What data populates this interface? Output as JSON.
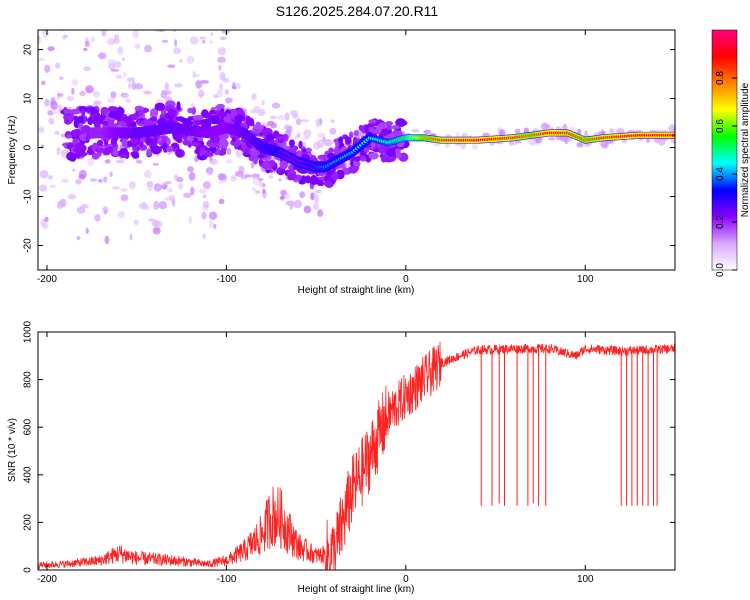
{
  "figure_title": "S126.2025.284.07.20.R11",
  "chart_data": [
    {
      "type": "heatmap",
      "title": "S126.2025.284.07.20.R11",
      "xlabel": "Height of straight line (km)",
      "ylabel": "Frequency (Hz)",
      "xlim": [
        -205,
        150
      ],
      "ylim": [
        -25,
        24
      ],
      "x_ticks": [
        -200,
        -100,
        0,
        100
      ],
      "y_ticks": [
        -20,
        -10,
        0,
        10,
        20
      ],
      "colorbar": {
        "label": "Normalized spectral amplitude",
        "range": [
          0,
          1
        ],
        "ticks": [
          "0.0",
          "0.2",
          "0.4",
          "0.6",
          "0.8"
        ],
        "tick_values": [
          0,
          0.2,
          0.4,
          0.6,
          0.8
        ],
        "colors": [
          "#ffffff",
          "#d9a6ff",
          "#8a00ff",
          "#0000ff",
          "#00ffff",
          "#00ff00",
          "#ffff00",
          "#ff8000",
          "#ff0000",
          "#ff0080"
        ]
      },
      "ridge": {
        "x": [
          -170,
          -150,
          -130,
          -110,
          -100,
          -90,
          -80,
          -70,
          -60,
          -50,
          -45,
          -40,
          -30,
          -20,
          -10,
          0,
          10,
          20,
          40,
          60,
          70,
          80,
          90,
          100,
          110,
          130,
          150
        ],
        "freq": [
          3,
          3,
          4,
          3,
          4,
          3,
          0,
          -1,
          -3,
          -4,
          -4,
          -3,
          -1,
          2,
          1,
          2,
          2,
          1.5,
          1.5,
          2,
          2.5,
          3,
          3,
          1.5,
          2,
          2.5,
          2.5
        ],
        "amp": [
          0.2,
          0.25,
          0.25,
          0.22,
          0.22,
          0.25,
          0.28,
          0.3,
          0.3,
          0.35,
          0.4,
          0.4,
          0.42,
          0.45,
          0.5,
          0.55,
          0.75,
          0.85,
          0.9,
          0.85,
          0.8,
          0.9,
          0.85,
          0.8,
          0.85,
          0.9,
          0.9
        ]
      }
    },
    {
      "type": "line",
      "xlabel": "Height of straight line (km)",
      "ylabel": "SNR (10 * v/v)",
      "xlim": [
        -205,
        150
      ],
      "ylim": [
        0,
        1000
      ],
      "x_ticks": [
        -200,
        -100,
        0,
        100
      ],
      "y_ticks": [
        0,
        200,
        400,
        600,
        800,
        1000
      ],
      "line_color": "#ff2020",
      "trend": {
        "x": [
          -205,
          -190,
          -170,
          -160,
          -150,
          -130,
          -110,
          -100,
          -90,
          -80,
          -75,
          -70,
          -65,
          -60,
          -50,
          -40,
          -35,
          -30,
          -25,
          -20,
          -10,
          0,
          10,
          20,
          30,
          40,
          60,
          80,
          95,
          100,
          120,
          150
        ],
        "y": [
          20,
          25,
          40,
          70,
          50,
          40,
          25,
          40,
          80,
          150,
          230,
          220,
          160,
          100,
          60,
          70,
          200,
          330,
          400,
          480,
          650,
          730,
          800,
          870,
          900,
          925,
          930,
          930,
          900,
          930,
          920,
          930
        ]
      },
      "dropouts": [
        {
          "x": 42,
          "y": 270
        },
        {
          "x": 48,
          "y": 270
        },
        {
          "x": 52,
          "y": 280
        },
        {
          "x": 55,
          "y": 270
        },
        {
          "x": 62,
          "y": 270
        },
        {
          "x": 68,
          "y": 270
        },
        {
          "x": 71,
          "y": 280
        },
        {
          "x": 74,
          "y": 270
        },
        {
          "x": 78,
          "y": 270
        },
        {
          "x": 120,
          "y": 270
        },
        {
          "x": 123,
          "y": 270
        },
        {
          "x": 126,
          "y": 270
        },
        {
          "x": 129,
          "y": 270
        },
        {
          "x": 132,
          "y": 270
        },
        {
          "x": 135,
          "y": 270
        },
        {
          "x": 138,
          "y": 270
        },
        {
          "x": 140,
          "y": 270
        }
      ]
    }
  ]
}
